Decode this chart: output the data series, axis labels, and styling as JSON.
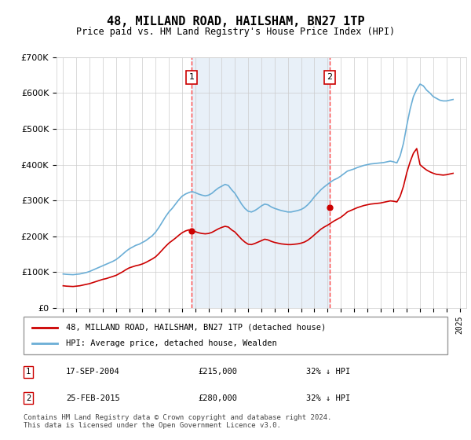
{
  "title": "48, MILLAND ROAD, HAILSHAM, BN27 1TP",
  "subtitle": "Price paid vs. HM Land Registry's House Price Index (HPI)",
  "legend_line1": "48, MILLAND ROAD, HAILSHAM, BN27 1TP (detached house)",
  "legend_line2": "HPI: Average price, detached house, Wealden",
  "footnote": "Contains HM Land Registry data © Crown copyright and database right 2024.\nThis data is licensed under the Open Government Licence v3.0.",
  "sale1_label": "1",
  "sale1_date": "17-SEP-2004",
  "sale1_price": "£215,000",
  "sale1_hpi": "32% ↓ HPI",
  "sale1_x": 2004.72,
  "sale1_y": 215000,
  "sale2_label": "2",
  "sale2_date": "25-FEB-2015",
  "sale2_price": "£280,000",
  "sale2_hpi": "32% ↓ HPI",
  "sale2_x": 2015.15,
  "sale2_y": 280000,
  "hpi_color": "#6baed6",
  "price_color": "#cc0000",
  "vline_color": "#ff4444",
  "bg_highlight_color": "#e8f0f8",
  "ylim": [
    0,
    700000
  ],
  "yticks": [
    0,
    100000,
    200000,
    300000,
    400000,
    500000,
    600000,
    700000
  ],
  "ytick_labels": [
    "£0",
    "£100K",
    "£200K",
    "£300K",
    "£400K",
    "£500K",
    "£600K",
    "£700K"
  ],
  "xlim_start": 1994.5,
  "xlim_end": 2025.5,
  "hpi_data_x": [
    1995.0,
    1995.25,
    1995.5,
    1995.75,
    1996.0,
    1996.25,
    1996.5,
    1996.75,
    1997.0,
    1997.25,
    1997.5,
    1997.75,
    1998.0,
    1998.25,
    1998.5,
    1998.75,
    1999.0,
    1999.25,
    1999.5,
    1999.75,
    2000.0,
    2000.25,
    2000.5,
    2000.75,
    2001.0,
    2001.25,
    2001.5,
    2001.75,
    2002.0,
    2002.25,
    2002.5,
    2002.75,
    2003.0,
    2003.25,
    2003.5,
    2003.75,
    2004.0,
    2004.25,
    2004.5,
    2004.75,
    2005.0,
    2005.25,
    2005.5,
    2005.75,
    2006.0,
    2006.25,
    2006.5,
    2006.75,
    2007.0,
    2007.25,
    2007.5,
    2007.75,
    2008.0,
    2008.25,
    2008.5,
    2008.75,
    2009.0,
    2009.25,
    2009.5,
    2009.75,
    2010.0,
    2010.25,
    2010.5,
    2010.75,
    2011.0,
    2011.25,
    2011.5,
    2011.75,
    2012.0,
    2012.25,
    2012.5,
    2012.75,
    2013.0,
    2013.25,
    2013.5,
    2013.75,
    2014.0,
    2014.25,
    2014.5,
    2014.75,
    2015.0,
    2015.25,
    2015.5,
    2015.75,
    2016.0,
    2016.25,
    2016.5,
    2016.75,
    2017.0,
    2017.25,
    2017.5,
    2017.75,
    2018.0,
    2018.25,
    2018.5,
    2018.75,
    2019.0,
    2019.25,
    2019.5,
    2019.75,
    2020.0,
    2020.25,
    2020.5,
    2020.75,
    2021.0,
    2021.25,
    2021.5,
    2021.75,
    2022.0,
    2022.25,
    2022.5,
    2022.75,
    2023.0,
    2023.25,
    2023.5,
    2023.75,
    2024.0,
    2024.25,
    2024.5
  ],
  "hpi_data_y": [
    95000,
    94000,
    93500,
    93000,
    94000,
    95000,
    97000,
    99000,
    102000,
    106000,
    110000,
    114000,
    118000,
    122000,
    126000,
    130000,
    135000,
    142000,
    150000,
    158000,
    165000,
    170000,
    175000,
    178000,
    183000,
    188000,
    195000,
    202000,
    212000,
    225000,
    240000,
    255000,
    268000,
    278000,
    290000,
    302000,
    312000,
    318000,
    322000,
    325000,
    322000,
    318000,
    315000,
    313000,
    315000,
    320000,
    328000,
    335000,
    340000,
    345000,
    342000,
    330000,
    320000,
    305000,
    290000,
    278000,
    270000,
    268000,
    272000,
    278000,
    285000,
    290000,
    288000,
    282000,
    278000,
    275000,
    272000,
    270000,
    268000,
    268000,
    270000,
    272000,
    275000,
    280000,
    288000,
    298000,
    310000,
    320000,
    330000,
    338000,
    345000,
    352000,
    358000,
    362000,
    368000,
    375000,
    382000,
    385000,
    388000,
    392000,
    395000,
    398000,
    400000,
    402000,
    403000,
    404000,
    405000,
    406000,
    408000,
    410000,
    408000,
    405000,
    425000,
    460000,
    510000,
    555000,
    590000,
    610000,
    625000,
    620000,
    608000,
    600000,
    590000,
    585000,
    580000,
    578000,
    578000,
    580000,
    582000
  ],
  "price_data_x": [
    1995.0,
    1995.25,
    1995.5,
    1995.75,
    1996.0,
    1996.25,
    1996.5,
    1996.75,
    1997.0,
    1997.25,
    1997.5,
    1997.75,
    1998.0,
    1998.25,
    1998.5,
    1998.75,
    1999.0,
    1999.25,
    1999.5,
    1999.75,
    2000.0,
    2000.25,
    2000.5,
    2000.75,
    2001.0,
    2001.25,
    2001.5,
    2001.75,
    2002.0,
    2002.25,
    2002.5,
    2002.75,
    2003.0,
    2003.25,
    2003.5,
    2003.75,
    2004.0,
    2004.25,
    2004.5,
    2004.75,
    2005.0,
    2005.25,
    2005.5,
    2005.75,
    2006.0,
    2006.25,
    2006.5,
    2006.75,
    2007.0,
    2007.25,
    2007.5,
    2007.75,
    2008.0,
    2008.25,
    2008.5,
    2008.75,
    2009.0,
    2009.25,
    2009.5,
    2009.75,
    2010.0,
    2010.25,
    2010.5,
    2010.75,
    2011.0,
    2011.25,
    2011.5,
    2011.75,
    2012.0,
    2012.25,
    2012.5,
    2012.75,
    2013.0,
    2013.25,
    2013.5,
    2013.75,
    2014.0,
    2014.25,
    2014.5,
    2014.75,
    2015.0,
    2015.25,
    2015.5,
    2015.75,
    2016.0,
    2016.25,
    2016.5,
    2016.75,
    2017.0,
    2017.25,
    2017.5,
    2017.75,
    2018.0,
    2018.25,
    2018.5,
    2018.75,
    2019.0,
    2019.25,
    2019.5,
    2019.75,
    2020.0,
    2020.25,
    2020.5,
    2020.75,
    2021.0,
    2021.25,
    2021.5,
    2021.75,
    2022.0,
    2022.25,
    2022.5,
    2022.75,
    2023.0,
    2023.25,
    2023.5,
    2023.75,
    2024.0,
    2024.25,
    2024.5
  ],
  "price_data_y": [
    62000,
    61000,
    60500,
    60000,
    61000,
    62000,
    64000,
    66000,
    68000,
    71000,
    74000,
    77000,
    80000,
    82000,
    85000,
    88000,
    91000,
    96000,
    101000,
    107000,
    112000,
    115000,
    118000,
    120000,
    123000,
    127000,
    132000,
    137000,
    143000,
    152000,
    162000,
    172000,
    181000,
    188000,
    195000,
    203000,
    210000,
    215000,
    218000,
    215000,
    213000,
    210000,
    208000,
    207000,
    208000,
    211000,
    216000,
    221000,
    225000,
    228000,
    226000,
    218000,
    212000,
    202000,
    192000,
    184000,
    178000,
    177000,
    180000,
    184000,
    188000,
    192000,
    190000,
    186000,
    183000,
    181000,
    179000,
    178000,
    177000,
    177000,
    178000,
    179000,
    181000,
    184000,
    189000,
    196000,
    204000,
    212000,
    220000,
    226000,
    231000,
    237000,
    243000,
    248000,
    253000,
    260000,
    268000,
    272000,
    276000,
    280000,
    283000,
    286000,
    288000,
    290000,
    291000,
    292000,
    293000,
    295000,
    297000,
    299000,
    298000,
    296000,
    312000,
    340000,
    378000,
    408000,
    432000,
    445000,
    400000,
    392000,
    385000,
    380000,
    376000,
    373000,
    372000,
    371000,
    372000,
    374000,
    376000
  ]
}
